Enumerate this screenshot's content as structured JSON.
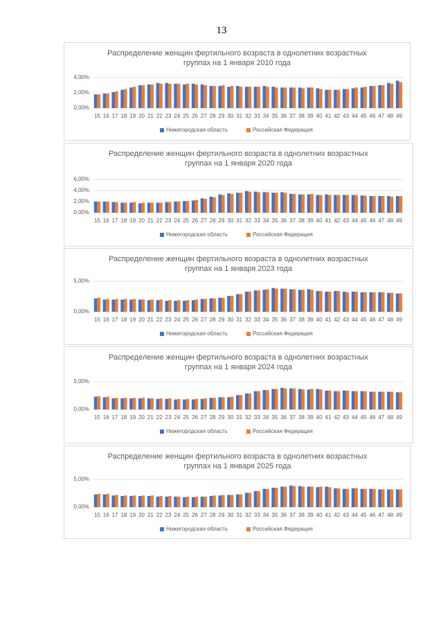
{
  "page_number": "13",
  "chart_data": [
    {
      "type": "bar",
      "title": "Распределение женщин фертильного возраста в однолетних возрастных\nгруппах на 1 января 2010 года",
      "categories": [
        "15",
        "16",
        "17",
        "18",
        "19",
        "20",
        "21",
        "22",
        "23",
        "24",
        "25",
        "26",
        "27",
        "28",
        "29",
        "30",
        "31",
        "32",
        "33",
        "34",
        "35",
        "36",
        "37",
        "38",
        "39",
        "40",
        "41",
        "42",
        "43",
        "44",
        "45",
        "46",
        "47",
        "48",
        "49"
      ],
      "series": [
        {
          "name": "Нижегородская область",
          "color": "#4472c4",
          "values": [
            1.8,
            1.9,
            2.1,
            2.4,
            2.7,
            3.0,
            3.1,
            3.3,
            3.3,
            3.2,
            3.1,
            3.2,
            3.1,
            2.9,
            2.9,
            2.8,
            2.9,
            2.8,
            2.8,
            2.9,
            2.8,
            2.7,
            2.7,
            2.7,
            2.7,
            2.6,
            2.4,
            2.4,
            2.5,
            2.6,
            2.7,
            2.9,
            3.0,
            3.3,
            3.6
          ]
        },
        {
          "name": "Российская Федерация",
          "color": "#ed7d31",
          "values": [
            1.8,
            1.9,
            2.2,
            2.5,
            2.8,
            3.0,
            3.1,
            3.2,
            3.2,
            3.2,
            3.2,
            3.1,
            3.0,
            2.9,
            3.0,
            2.9,
            2.8,
            2.8,
            2.8,
            2.8,
            2.7,
            2.7,
            2.7,
            2.6,
            2.7,
            2.5,
            2.4,
            2.4,
            2.5,
            2.7,
            2.8,
            2.9,
            3.0,
            3.2,
            3.4
          ]
        }
      ],
      "ylim": [
        0,
        4
      ],
      "yticks": [
        {
          "value": 0,
          "label": "0,00%"
        },
        {
          "value": 2,
          "label": "2,00%"
        },
        {
          "value": 4,
          "label": "4,00%"
        }
      ],
      "grid": true,
      "legend": "bottom"
    },
    {
      "type": "bar",
      "title": "Распределение женщин фертильного возраста в однолетних возрастных\nгруппах на 1 января 2020 года",
      "categories": [
        "15",
        "16",
        "17",
        "18",
        "19",
        "20",
        "21",
        "22",
        "23",
        "24",
        "25",
        "26",
        "27",
        "28",
        "29",
        "30",
        "31",
        "32",
        "33",
        "34",
        "35",
        "36",
        "37",
        "38",
        "39",
        "40",
        "41",
        "42",
        "43",
        "44",
        "45",
        "46",
        "47",
        "48",
        "49"
      ],
      "series": [
        {
          "name": "Нижегородская область",
          "color": "#4472c4",
          "values": [
            2.0,
            2.0,
            1.9,
            1.8,
            1.8,
            1.7,
            1.8,
            1.8,
            1.9,
            2.0,
            2.1,
            2.2,
            2.6,
            2.9,
            3.3,
            3.5,
            3.6,
            3.9,
            3.8,
            3.7,
            3.6,
            3.7,
            3.4,
            3.3,
            3.3,
            3.2,
            3.3,
            3.2,
            3.2,
            3.2,
            3.1,
            3.0,
            3.0,
            3.0,
            3.0
          ]
        },
        {
          "name": "Российская Федерация",
          "color": "#ed7d31",
          "values": [
            2.0,
            2.0,
            1.9,
            1.8,
            1.9,
            1.8,
            1.8,
            1.8,
            1.9,
            2.0,
            2.1,
            2.3,
            2.5,
            2.8,
            3.2,
            3.4,
            3.6,
            3.8,
            3.7,
            3.7,
            3.6,
            3.6,
            3.4,
            3.3,
            3.4,
            3.2,
            3.2,
            3.2,
            3.2,
            3.2,
            3.1,
            3.0,
            3.0,
            2.9,
            3.0
          ]
        }
      ],
      "ylim": [
        0,
        6
      ],
      "yticks": [
        {
          "value": 0,
          "label": "0,00%"
        },
        {
          "value": 2,
          "label": "2,00%"
        },
        {
          "value": 4,
          "label": "4,00%"
        },
        {
          "value": 6,
          "label": "6,00%"
        }
      ],
      "grid": true,
      "legend": "bottom"
    },
    {
      "type": "bar",
      "title": "Распределение женщин фертильного возраста в однолетних возрастных\nгруппах на 1 января 2023 года",
      "categories": [
        "15",
        "16",
        "17",
        "18",
        "19",
        "20",
        "21",
        "22",
        "23",
        "24",
        "25",
        "26",
        "27",
        "28",
        "29",
        "30",
        "31",
        "32",
        "33",
        "34",
        "35",
        "36",
        "37",
        "38",
        "39",
        "40",
        "41",
        "42",
        "43",
        "44",
        "45",
        "46",
        "47",
        "48",
        "49"
      ],
      "series": [
        {
          "name": "Нижегородская область",
          "color": "#4472c4",
          "values": [
            2.2,
            2.0,
            2.0,
            2.0,
            2.0,
            2.0,
            1.9,
            1.9,
            1.8,
            1.8,
            1.8,
            1.9,
            2.1,
            2.2,
            2.3,
            2.6,
            2.9,
            3.3,
            3.5,
            3.6,
            3.9,
            3.8,
            3.7,
            3.6,
            3.7,
            3.4,
            3.3,
            3.4,
            3.3,
            3.3,
            3.2,
            3.2,
            3.2,
            3.1,
            3.0
          ]
        },
        {
          "name": "Российская Федерация",
          "color": "#ed7d31",
          "values": [
            2.3,
            2.1,
            2.1,
            2.1,
            2.1,
            2.0,
            2.0,
            2.0,
            1.9,
            1.9,
            1.9,
            2.0,
            2.1,
            2.2,
            2.3,
            2.6,
            2.9,
            3.3,
            3.5,
            3.7,
            3.8,
            3.8,
            3.7,
            3.6,
            3.6,
            3.4,
            3.3,
            3.4,
            3.2,
            3.3,
            3.2,
            3.2,
            3.2,
            3.1,
            3.0
          ]
        }
      ],
      "ylim": [
        0,
        5
      ],
      "yticks": [
        {
          "value": 0,
          "label": "0,00%"
        },
        {
          "value": 5,
          "label": "5,00%"
        }
      ],
      "grid": true,
      "legend": "bottom"
    },
    {
      "type": "bar",
      "title": "Распределение женщин фертильного возраста в однолетних возрастных\nгруппах на 1 января 2024 года",
      "categories": [
        "15",
        "16",
        "17",
        "18",
        "19",
        "20",
        "21",
        "22",
        "23",
        "24",
        "25",
        "26",
        "27",
        "28",
        "29",
        "30",
        "31",
        "32",
        "33",
        "34",
        "35",
        "36",
        "37",
        "38",
        "39",
        "40",
        "41",
        "42",
        "43",
        "44",
        "45",
        "46",
        "47",
        "48",
        "49"
      ],
      "series": [
        {
          "name": "Нижегородская область",
          "color": "#4472c4",
          "values": [
            2.3,
            2.2,
            2.0,
            2.0,
            2.0,
            2.0,
            2.0,
            1.9,
            1.9,
            1.8,
            1.8,
            1.8,
            1.9,
            2.1,
            2.2,
            2.2,
            2.6,
            2.9,
            3.3,
            3.5,
            3.7,
            3.9,
            3.8,
            3.7,
            3.6,
            3.7,
            3.4,
            3.3,
            3.4,
            3.3,
            3.3,
            3.2,
            3.2,
            3.2,
            3.1
          ]
        },
        {
          "name": "Российская Федерация",
          "color": "#ed7d31",
          "values": [
            2.4,
            2.3,
            2.1,
            2.1,
            2.1,
            2.1,
            2.0,
            2.0,
            2.0,
            1.9,
            1.9,
            1.9,
            2.0,
            2.1,
            2.2,
            2.3,
            2.6,
            2.9,
            3.3,
            3.5,
            3.7,
            3.8,
            3.8,
            3.6,
            3.7,
            3.6,
            3.4,
            3.3,
            3.4,
            3.3,
            3.3,
            3.2,
            3.2,
            3.2,
            3.1
          ]
        }
      ],
      "ylim": [
        0,
        5
      ],
      "yticks": [
        {
          "value": 0,
          "label": "0,00%"
        },
        {
          "value": 5,
          "label": "5,00%"
        }
      ],
      "grid": true,
      "legend": "bottom"
    },
    {
      "type": "bar",
      "title": "Распределение женщин фертильного возраста в однолетних возрастных\nгруппах на 1 января 2025 года",
      "categories": [
        "15",
        "16",
        "17",
        "18",
        "19",
        "20",
        "21",
        "22",
        "23",
        "24",
        "25",
        "26",
        "27",
        "28",
        "29",
        "30",
        "31",
        "32",
        "33",
        "34",
        "35",
        "36",
        "37",
        "38",
        "39",
        "40",
        "41",
        "42",
        "43",
        "44",
        "45",
        "46",
        "47",
        "48",
        "49"
      ],
      "series": [
        {
          "name": "Нижегородская область",
          "color": "#4472c4",
          "values": [
            2.3,
            2.3,
            2.1,
            2.0,
            2.0,
            2.0,
            2.0,
            1.9,
            1.9,
            1.9,
            1.8,
            1.8,
            1.9,
            2.0,
            2.1,
            2.2,
            2.3,
            2.6,
            2.9,
            3.3,
            3.5,
            3.7,
            3.9,
            3.8,
            3.7,
            3.6,
            3.7,
            3.4,
            3.3,
            3.4,
            3.3,
            3.3,
            3.2,
            3.2,
            3.2
          ]
        },
        {
          "name": "Российская Федерация",
          "color": "#ed7d31",
          "values": [
            2.4,
            2.4,
            2.2,
            2.1,
            2.1,
            2.1,
            2.1,
            2.0,
            2.0,
            1.9,
            1.9,
            1.9,
            1.9,
            2.1,
            2.2,
            2.2,
            2.3,
            2.6,
            2.9,
            3.3,
            3.5,
            3.7,
            3.8,
            3.7,
            3.7,
            3.7,
            3.6,
            3.4,
            3.3,
            3.4,
            3.3,
            3.3,
            3.2,
            3.2,
            3.2
          ]
        }
      ],
      "ylim": [
        0,
        5
      ],
      "yticks": [
        {
          "value": 0,
          "label": "0,00%"
        },
        {
          "value": 5,
          "label": "5,00%"
        }
      ],
      "grid": true,
      "legend": "bottom"
    }
  ]
}
